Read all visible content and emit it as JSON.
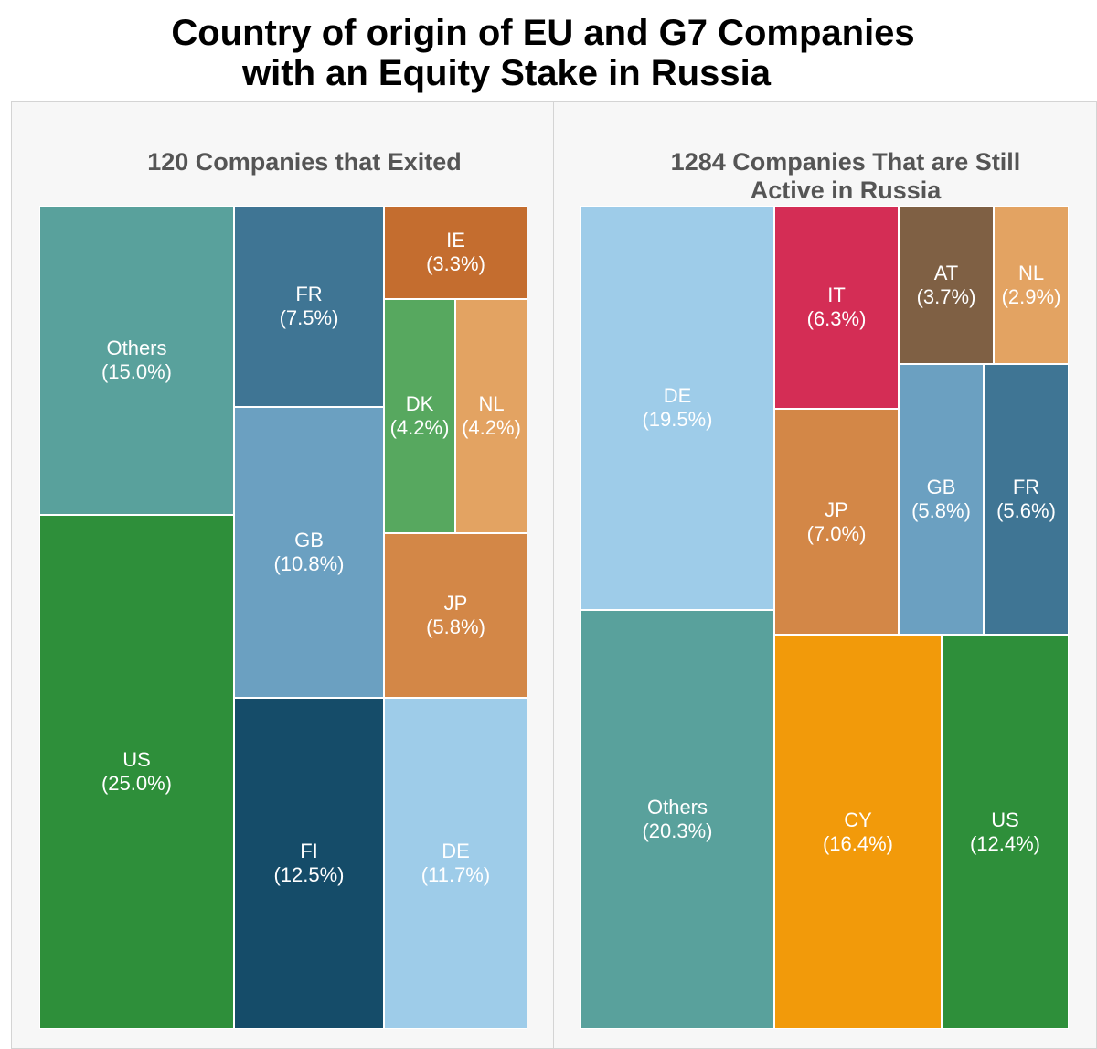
{
  "title_line1": "Country of origin of EU and G7 Companies",
  "title_line2": "with an Equity Stake in Russia",
  "chart_data": [
    {
      "type": "treemap",
      "title": "120 Companies that Exited",
      "tiles": [
        {
          "label": "Others",
          "pct": "(15.0%)",
          "value": 15.0,
          "color": "#59a19c"
        },
        {
          "label": "US",
          "pct": "(25.0%)",
          "value": 25.0,
          "color": "#2e8f3a"
        },
        {
          "label": "FR",
          "pct": "(7.5%)",
          "value": 7.5,
          "color": "#3f7594"
        },
        {
          "label": "GB",
          "pct": "(10.8%)",
          "value": 10.8,
          "color": "#6ba0c1"
        },
        {
          "label": "FI",
          "pct": "(12.5%)",
          "value": 12.5,
          "color": "#154c69"
        },
        {
          "label": "IE",
          "pct": "(3.3%)",
          "value": 3.3,
          "color": "#c46d2f"
        },
        {
          "label": "DK",
          "pct": "(4.2%)",
          "value": 4.2,
          "color": "#57a85f"
        },
        {
          "label": "NL",
          "pct": "(4.2%)",
          "value": 4.2,
          "color": "#e3a362"
        },
        {
          "label": "JP",
          "pct": "(5.8%)",
          "value": 5.8,
          "color": "#d38747"
        },
        {
          "label": "DE",
          "pct": "(11.7%)",
          "value": 11.7,
          "color": "#9ecce9"
        }
      ]
    },
    {
      "type": "treemap",
      "title": "1284 Companies That are Still Active in Russia",
      "tiles": [
        {
          "label": "DE",
          "pct": "(19.5%)",
          "value": 19.5,
          "color": "#9ecce9"
        },
        {
          "label": "Others",
          "pct": "(20.3%)",
          "value": 20.3,
          "color": "#59a19c"
        },
        {
          "label": "IT",
          "pct": "(6.3%)",
          "value": 6.3,
          "color": "#d42d55"
        },
        {
          "label": "AT",
          "pct": "(3.7%)",
          "value": 3.7,
          "color": "#7f6044"
        },
        {
          "label": "NL",
          "pct": "(2.9%)",
          "value": 2.9,
          "color": "#e3a362"
        },
        {
          "label": "JP",
          "pct": "(7.0%)",
          "value": 7.0,
          "color": "#d38747"
        },
        {
          "label": "GB",
          "pct": "(5.8%)",
          "value": 5.8,
          "color": "#6ba0c1"
        },
        {
          "label": "FR",
          "pct": "(5.6%)",
          "value": 5.6,
          "color": "#3f7594"
        },
        {
          "label": "CY",
          "pct": "(16.4%)",
          "value": 16.4,
          "color": "#f29a0a"
        },
        {
          "label": "US",
          "pct": "(12.4%)",
          "value": 12.4,
          "color": "#2e8f3a"
        }
      ]
    }
  ]
}
